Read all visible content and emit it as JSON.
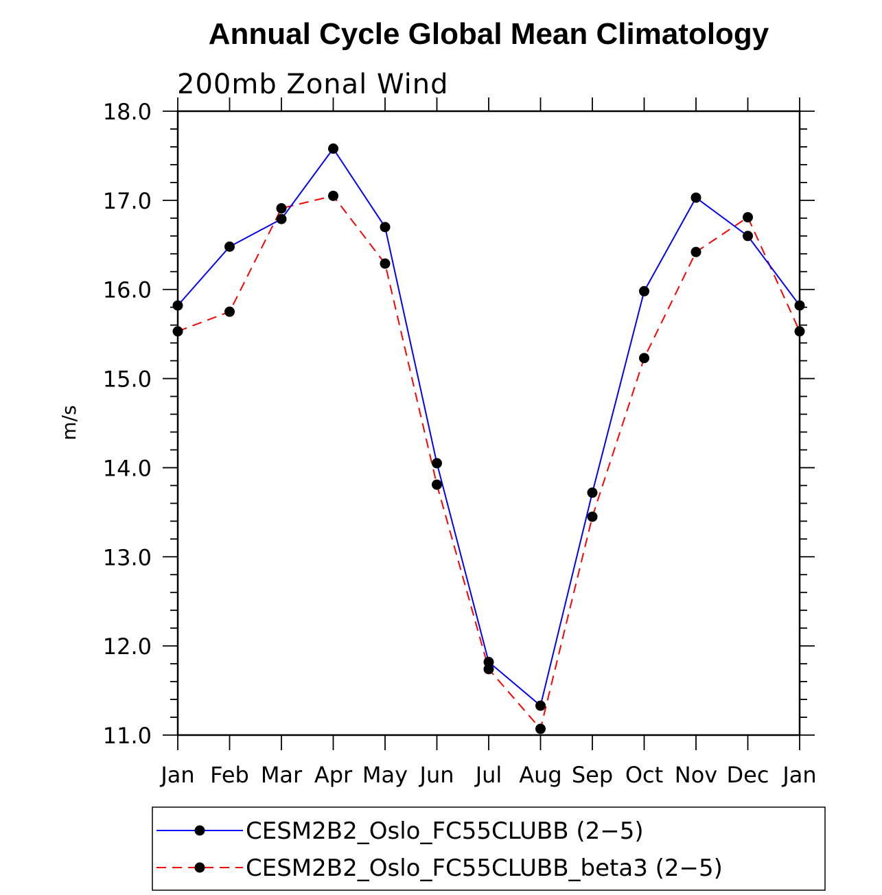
{
  "chart_data": {
    "type": "line",
    "title": "Annual Cycle Global Mean Climatology",
    "subtitle": "200mb Zonal Wind",
    "xlabel": "",
    "ylabel": "m/s",
    "ylim": [
      11.0,
      18.0
    ],
    "yticks": [
      "11.0",
      "12.0",
      "13.0",
      "14.0",
      "15.0",
      "16.0",
      "17.0",
      "18.0"
    ],
    "yticks_values": [
      11,
      12,
      13,
      14,
      15,
      16,
      17,
      18
    ],
    "categories": [
      "Jan",
      "Feb",
      "Mar",
      "Apr",
      "May",
      "Jun",
      "Jul",
      "Aug",
      "Sep",
      "Oct",
      "Nov",
      "Dec",
      "Jan"
    ],
    "grid": false,
    "legend_position": "bottom",
    "series": [
      {
        "name": "CESM2B2_Oslo_FC55CLUBB (2−5)",
        "color": "#0000ff",
        "dash": "solid",
        "values": [
          15.82,
          16.48,
          16.79,
          17.58,
          16.7,
          14.05,
          11.82,
          11.33,
          13.72,
          15.98,
          17.03,
          16.6,
          15.82
        ]
      },
      {
        "name": "CESM2B2_Oslo_FC55CLUBB_beta3 (2−5)",
        "color": "#ff0000",
        "dash": "dashed",
        "values": [
          15.53,
          15.75,
          16.91,
          17.05,
          16.29,
          13.81,
          11.74,
          11.07,
          13.45,
          15.23,
          16.42,
          16.81,
          15.53
        ]
      }
    ]
  }
}
